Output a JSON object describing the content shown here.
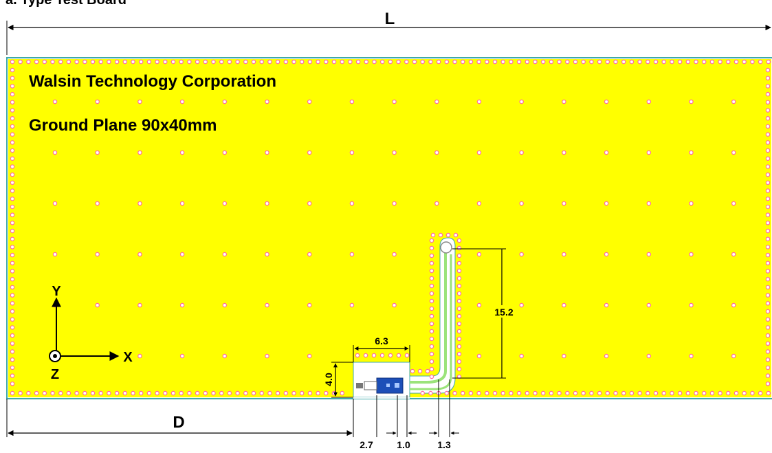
{
  "header_fragment": "a. Type Test Board",
  "board": {
    "company": "Walsin Technology Corporation",
    "ground_plane": "Ground Plane 90x40mm",
    "colors": {
      "copper": "#ffff00",
      "outline": "#3fa9a9",
      "via_fill": "#ffffff",
      "via_ring": "#ff66aa",
      "clearance": "#ffffff",
      "trace": "#9be37a",
      "component": "#1c4fb8"
    }
  },
  "dimensions": {
    "L": "L",
    "D": "D",
    "height_15_2": "15.2",
    "width_6_3": "6.3",
    "height_4_0": "4.0",
    "gap_2_7": "2.7",
    "gap_1_0": "1.0",
    "gap_1_3": "1.3"
  },
  "axes": {
    "x": "X",
    "y": "Y",
    "z": "Z"
  }
}
